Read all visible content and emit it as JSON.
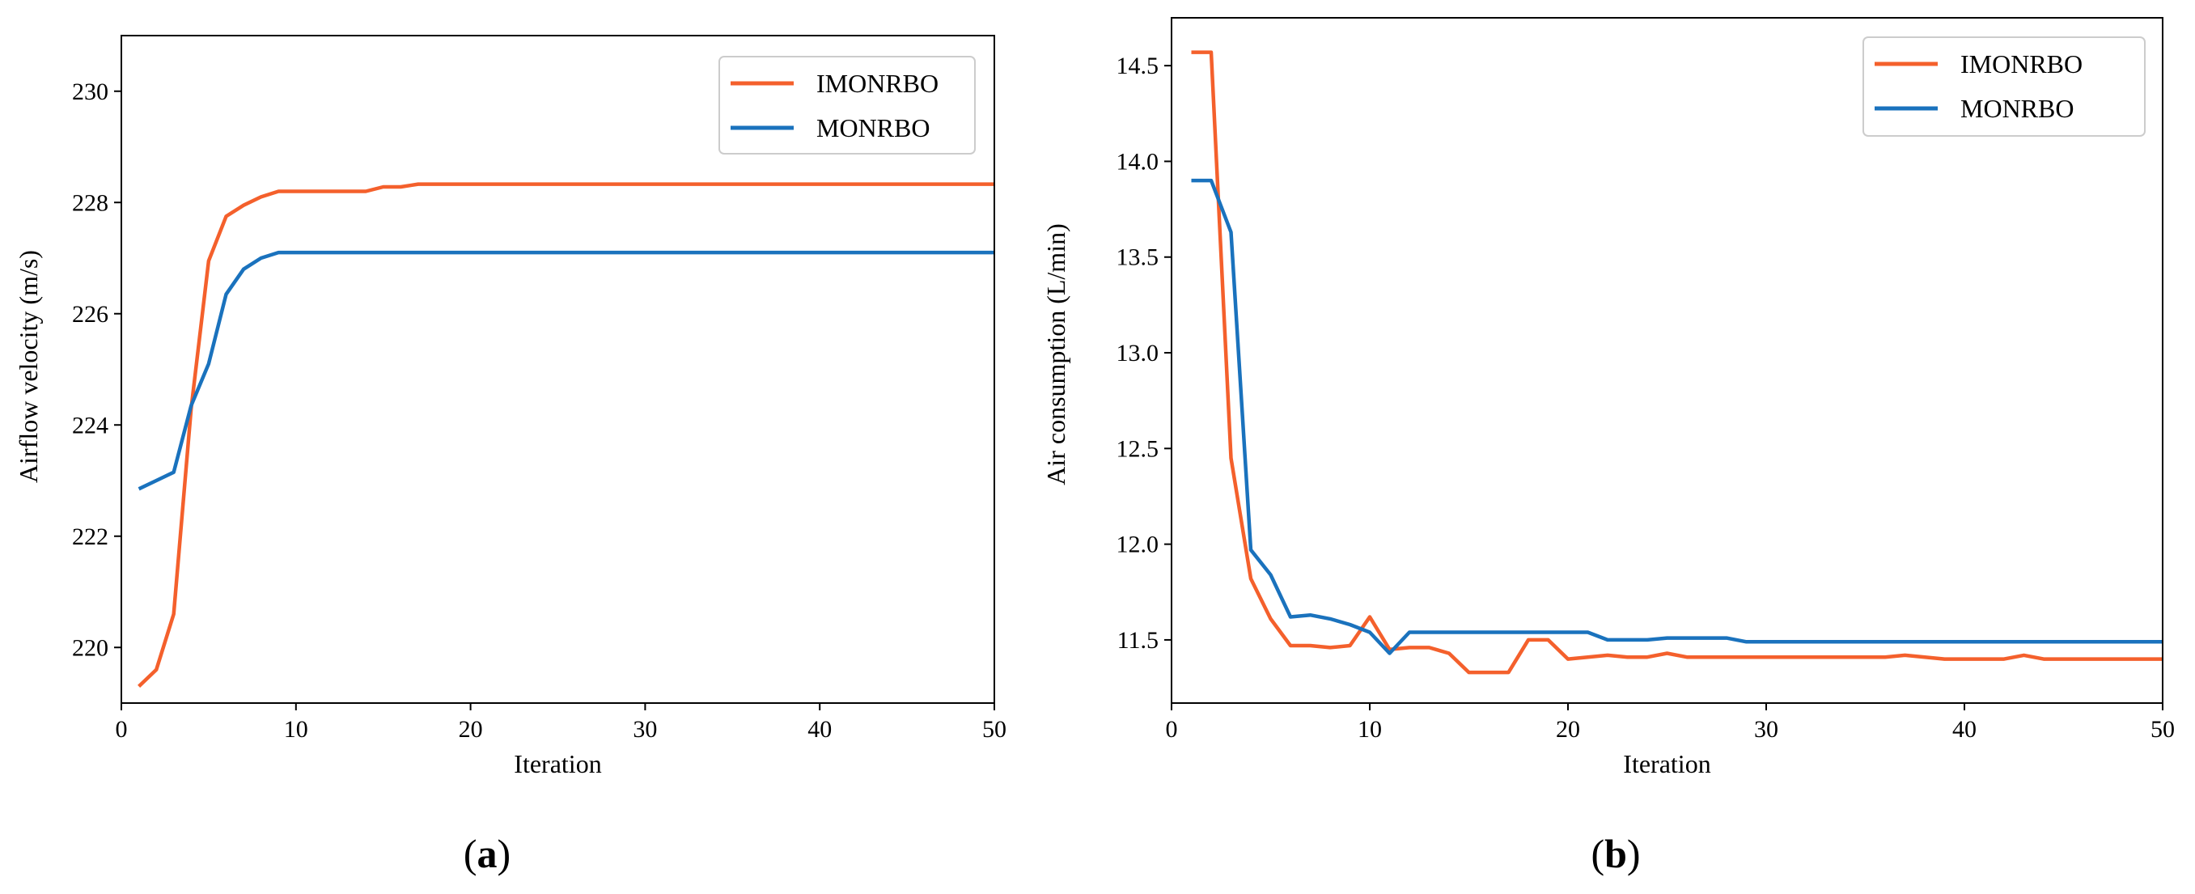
{
  "colors": {
    "IMONRBO": "#f4602c",
    "MONRBO": "#1a72bd"
  },
  "panel_labels": [
    "(",
    "a",
    ")",
    "(",
    "b",
    ")"
  ],
  "chart_data": [
    {
      "type": "line",
      "panel": "a",
      "xlabel": "Iteration",
      "ylabel": "Airflow velocity (m/s)",
      "xlim": [
        0,
        50
      ],
      "ylim": [
        219,
        231
      ],
      "xticks": [
        0,
        10,
        20,
        30,
        40,
        50
      ],
      "yticks": [
        220,
        222,
        224,
        226,
        228,
        230
      ],
      "legend_position": "top-right",
      "grid": false,
      "series": [
        {
          "name": "IMONRBO",
          "x": [
            1,
            2,
            3,
            4,
            5,
            6,
            7,
            8,
            9,
            10,
            11,
            12,
            13,
            14,
            15,
            16,
            17,
            18,
            20,
            25,
            30,
            35,
            40,
            45,
            50
          ],
          "y": [
            219.3,
            219.6,
            220.6,
            224.3,
            226.95,
            227.75,
            227.95,
            228.1,
            228.2,
            228.2,
            228.2,
            228.2,
            228.2,
            228.2,
            228.28,
            228.28,
            228.33,
            228.33,
            228.33,
            228.33,
            228.33,
            228.33,
            228.33,
            228.33,
            228.33
          ]
        },
        {
          "name": "MONRBO",
          "x": [
            1,
            2,
            3,
            4,
            5,
            6,
            7,
            8,
            9,
            10,
            15,
            20,
            25,
            30,
            35,
            40,
            45,
            50
          ],
          "y": [
            222.85,
            223.0,
            223.15,
            224.35,
            225.1,
            226.35,
            226.8,
            227.0,
            227.1,
            227.1,
            227.1,
            227.1,
            227.1,
            227.1,
            227.1,
            227.1,
            227.1,
            227.1
          ]
        }
      ]
    },
    {
      "type": "line",
      "panel": "b",
      "xlabel": "Iteration",
      "ylabel": "Air consumption (L/min)",
      "xlim": [
        0,
        50
      ],
      "ylim": [
        11.17,
        14.75
      ],
      "xticks": [
        0,
        10,
        20,
        30,
        40,
        50
      ],
      "yticks": [
        11.5,
        12.0,
        12.5,
        13.0,
        13.5,
        14.0,
        14.5
      ],
      "legend_position": "top-right",
      "grid": false,
      "series": [
        {
          "name": "IMONRBO",
          "x": [
            1,
            2,
            3,
            4,
            5,
            6,
            7,
            8,
            9,
            10,
            11,
            12,
            13,
            14,
            15,
            16,
            17,
            18,
            19,
            20,
            21,
            22,
            23,
            24,
            25,
            26,
            27,
            28,
            29,
            30,
            31,
            32,
            33,
            34,
            35,
            36,
            37,
            38,
            39,
            40,
            41,
            42,
            43,
            44,
            45,
            46,
            47,
            48,
            49,
            50
          ],
          "y": [
            14.57,
            14.57,
            12.45,
            11.82,
            11.61,
            11.47,
            11.47,
            11.46,
            11.47,
            11.62,
            11.45,
            11.46,
            11.46,
            11.43,
            11.33,
            11.33,
            11.33,
            11.5,
            11.5,
            11.4,
            11.41,
            11.42,
            11.41,
            11.41,
            11.43,
            11.41,
            11.41,
            11.41,
            11.41,
            11.41,
            11.41,
            11.41,
            11.41,
            11.41,
            11.41,
            11.41,
            11.42,
            11.41,
            11.4,
            11.4,
            11.4,
            11.4,
            11.42,
            11.4,
            11.4,
            11.4,
            11.4,
            11.4,
            11.4,
            11.4
          ]
        },
        {
          "name": "MONRBO",
          "x": [
            1,
            2,
            3,
            4,
            5,
            6,
            7,
            8,
            9,
            10,
            11,
            12,
            13,
            14,
            15,
            16,
            17,
            18,
            19,
            20,
            21,
            22,
            23,
            24,
            25,
            26,
            27,
            28,
            29,
            30,
            35,
            40,
            45,
            50
          ],
          "y": [
            13.9,
            13.9,
            13.63,
            11.97,
            11.84,
            11.62,
            11.63,
            11.61,
            11.58,
            11.54,
            11.43,
            11.54,
            11.54,
            11.54,
            11.54,
            11.54,
            11.54,
            11.54,
            11.54,
            11.54,
            11.54,
            11.5,
            11.5,
            11.5,
            11.51,
            11.51,
            11.51,
            11.51,
            11.49,
            11.49,
            11.49,
            11.49,
            11.49,
            11.49
          ]
        }
      ]
    }
  ]
}
